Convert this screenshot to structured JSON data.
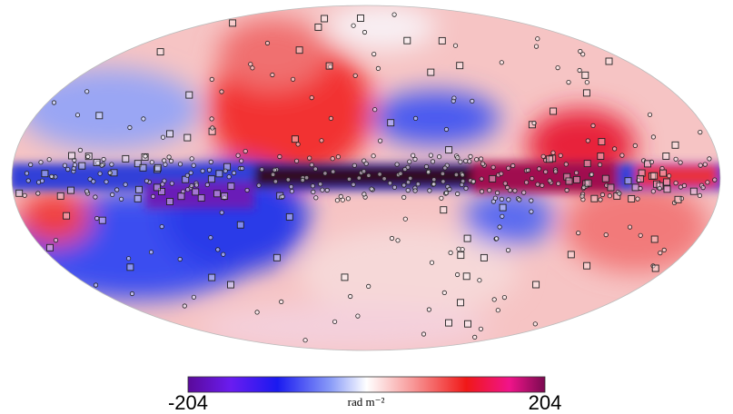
{
  "colorbar": {
    "ticks": [
      -204,
      204
    ],
    "label": "rad m⁻²"
  }
}
